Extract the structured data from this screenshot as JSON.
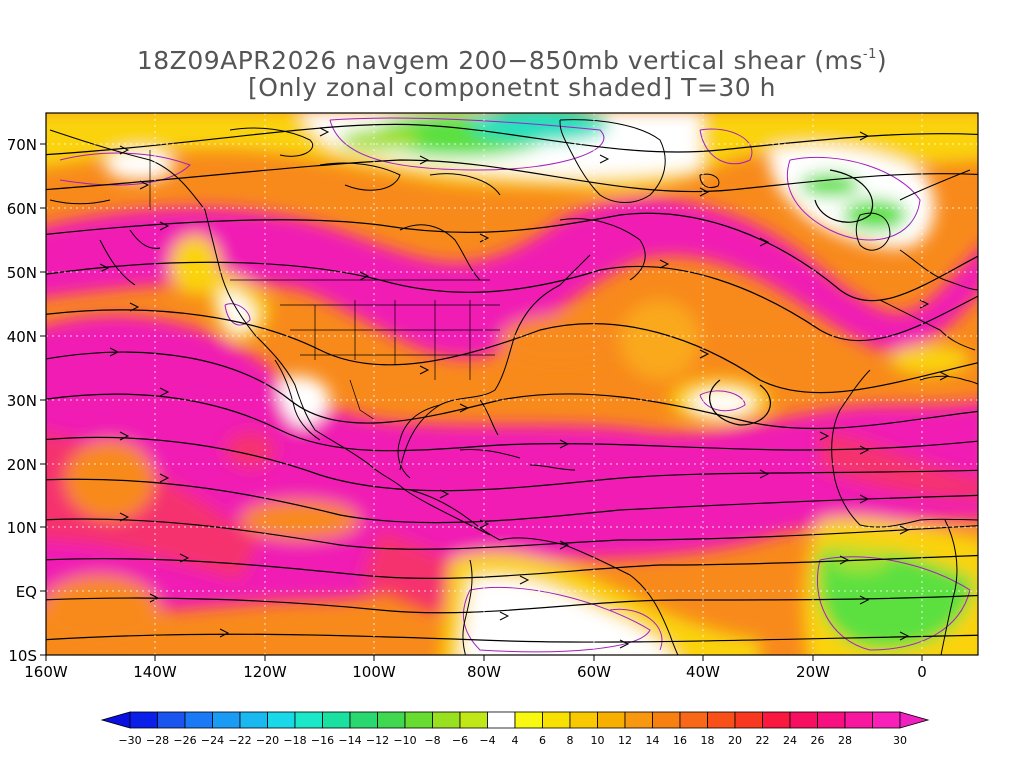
{
  "title_line1_pre": "18Z09APR2026 navgem 200−850mb vertical shear (ms",
  "title_line1_sup": "-1",
  "title_line1_post": ")",
  "title_line2": "[Only zonal componetnt shaded] T=30 h",
  "lat_labels": [
    "70N",
    "60N",
    "50N",
    "40N",
    "30N",
    "20N",
    "10N",
    "EQ",
    "10S"
  ],
  "lon_labels": [
    "160W",
    "140W",
    "120W",
    "100W",
    "80W",
    "60W",
    "40W",
    "20W",
    "0"
  ],
  "colorbar": {
    "labels": [
      "-30",
      "-28",
      "-26",
      "-24",
      "-22",
      "-20",
      "-18",
      "-16",
      "-14",
      "-12",
      "-10",
      "-8",
      "-6",
      "-4",
      "4",
      "6",
      "8",
      "10",
      "12",
      "14",
      "16",
      "18",
      "20",
      "22",
      "24",
      "26",
      "28",
      "30"
    ],
    "colors": [
      "#0a1fe8",
      "#1a55f0",
      "#1a7af5",
      "#1a9cf5",
      "#1ab8f0",
      "#1ad8e8",
      "#1ae8c8",
      "#1ae0a0",
      "#2ad870",
      "#40d850",
      "#68dc30",
      "#98e020",
      "#c0e818",
      "#ffffff",
      "#f8f810",
      "#f8e000",
      "#f8c800",
      "#f8b000",
      "#f89810",
      "#f88010",
      "#f86818",
      "#f85018",
      "#f83820",
      "#f81840",
      "#f81060",
      "#f81080",
      "#f818a0",
      "#f820b8"
    ],
    "under_color": "#0a10e0",
    "over_color": "#f020c0"
  },
  "map": {
    "lon_range": [
      -160,
      10
    ],
    "lat_range": [
      -10,
      75
    ],
    "shading_colors": {
      "magenta": "#f01cb4",
      "red_pink": "#f5306e",
      "orange": "#f88a1c",
      "orange_light": "#faa81a",
      "yellow": "#fad30a",
      "white": "#ffffff",
      "green": "#5ce040",
      "cyan": "#28e0c0"
    },
    "coast_color": "#000000",
    "contour_color": "#a020c0"
  }
}
